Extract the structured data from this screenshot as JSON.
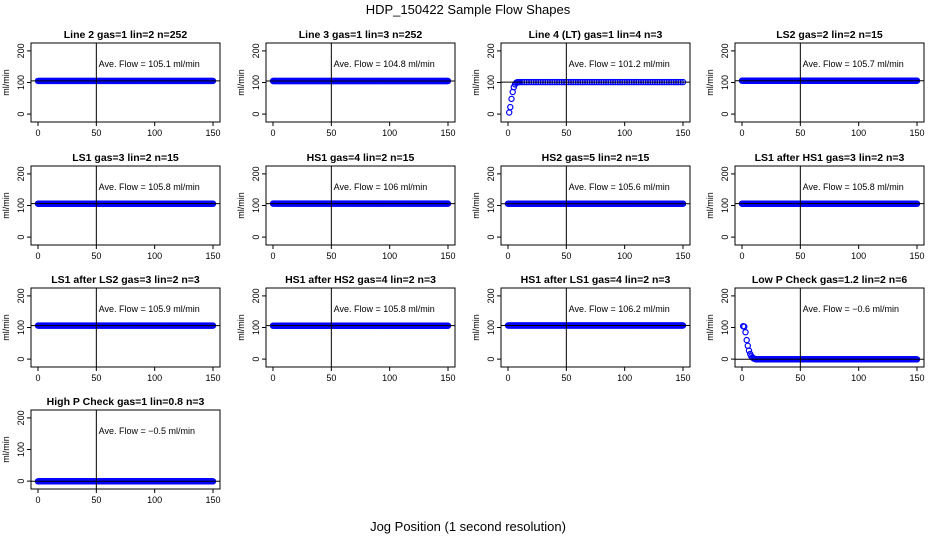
{
  "page": {
    "title": "HDP_150422  Sample Flow Shapes",
    "xlabel": "Jog Position (1 second resolution)"
  },
  "style": {
    "point_color": "#0000ff",
    "line_color": "#000000"
  },
  "chart_data": [
    {
      "type": "scatter",
      "title": "Line 2 gas=1 lin=2 n=252",
      "ylabel": "ml/min",
      "annotation": "Ave. Flow = 105.1  ml/min",
      "xlim": [
        0,
        150
      ],
      "ylim": [
        -25,
        225
      ],
      "xticks": [
        0,
        50,
        100,
        150
      ],
      "yticks": [
        0,
        100,
        200
      ],
      "vline": 50,
      "hline": 105.1,
      "series": {
        "shape": "flat",
        "level": 105.1
      }
    },
    {
      "type": "scatter",
      "title": "Line 3 gas=1 lin=3 n=252",
      "ylabel": "ml/min",
      "annotation": "Ave. Flow = 104.8  ml/min",
      "xlim": [
        0,
        150
      ],
      "ylim": [
        -25,
        225
      ],
      "xticks": [
        0,
        50,
        100,
        150
      ],
      "yticks": [
        0,
        100,
        200
      ],
      "vline": 50,
      "hline": 104.8,
      "series": {
        "shape": "flat",
        "level": 104.8
      }
    },
    {
      "type": "scatter",
      "title": "Line 4 (LT) gas=1 lin=4 n=3",
      "ylabel": "ml/min",
      "annotation": "Ave. Flow = 101.2  ml/min",
      "xlim": [
        0,
        150
      ],
      "ylim": [
        -25,
        225
      ],
      "xticks": [
        0,
        50,
        100,
        150
      ],
      "yticks": [
        0,
        100,
        200
      ],
      "vline": 50,
      "hline": 101.2,
      "series": {
        "shape": "rise",
        "level": 101.2,
        "points": [
          [
            1,
            5
          ],
          [
            2,
            22
          ],
          [
            3,
            48
          ],
          [
            4,
            70
          ],
          [
            5,
            85
          ],
          [
            6,
            94
          ],
          [
            7,
            99
          ],
          [
            8,
            101
          ],
          [
            9,
            101
          ]
        ]
      }
    },
    {
      "type": "scatter",
      "title": "LS2 gas=2 lin=2 n=15",
      "ylabel": "ml/min",
      "annotation": "Ave. Flow = 105.7  ml/min",
      "xlim": [
        0,
        150
      ],
      "ylim": [
        -25,
        225
      ],
      "xticks": [
        0,
        50,
        100,
        150
      ],
      "yticks": [
        0,
        100,
        200
      ],
      "vline": 50,
      "hline": 105.7,
      "series": {
        "shape": "flat",
        "level": 105.7
      }
    },
    {
      "type": "scatter",
      "title": "LS1 gas=3 lin=2 n=15",
      "ylabel": "ml/min",
      "annotation": "Ave. Flow = 105.8  ml/min",
      "xlim": [
        0,
        150
      ],
      "ylim": [
        -25,
        225
      ],
      "xticks": [
        0,
        50,
        100,
        150
      ],
      "yticks": [
        0,
        100,
        200
      ],
      "vline": 50,
      "hline": 105.8,
      "series": {
        "shape": "flat",
        "level": 105.8
      }
    },
    {
      "type": "scatter",
      "title": "HS1 gas=4 lin=2 n=15",
      "ylabel": "ml/min",
      "annotation": "Ave. Flow = 106  ml/min",
      "xlim": [
        0,
        150
      ],
      "ylim": [
        -25,
        225
      ],
      "xticks": [
        0,
        50,
        100,
        150
      ],
      "yticks": [
        0,
        100,
        200
      ],
      "vline": 50,
      "hline": 106,
      "series": {
        "shape": "flat",
        "level": 106
      }
    },
    {
      "type": "scatter",
      "title": "HS2 gas=5 lin=2 n=15",
      "ylabel": "ml/min",
      "annotation": "Ave. Flow = 105.6  ml/min",
      "xlim": [
        0,
        150
      ],
      "ylim": [
        -25,
        225
      ],
      "xticks": [
        0,
        50,
        100,
        150
      ],
      "yticks": [
        0,
        100,
        200
      ],
      "vline": 50,
      "hline": 105.6,
      "series": {
        "shape": "flat",
        "level": 105.6
      }
    },
    {
      "type": "scatter",
      "title": "LS1 after HS1 gas=3 lin=2 n=3",
      "ylabel": "ml/min",
      "annotation": "Ave. Flow = 105.8  ml/min",
      "xlim": [
        0,
        150
      ],
      "ylim": [
        -25,
        225
      ],
      "xticks": [
        0,
        50,
        100,
        150
      ],
      "yticks": [
        0,
        100,
        200
      ],
      "vline": 50,
      "hline": 105.8,
      "series": {
        "shape": "flat",
        "level": 105.8
      }
    },
    {
      "type": "scatter",
      "title": "LS1 after LS2 gas=3 lin=2 n=3",
      "ylabel": "ml/min",
      "annotation": "Ave. Flow = 105.9  ml/min",
      "xlim": [
        0,
        150
      ],
      "ylim": [
        -25,
        225
      ],
      "xticks": [
        0,
        50,
        100,
        150
      ],
      "yticks": [
        0,
        100,
        200
      ],
      "vline": 50,
      "hline": 105.9,
      "series": {
        "shape": "flat",
        "level": 105.9
      }
    },
    {
      "type": "scatter",
      "title": "HS1 after HS2 gas=4 lin=2 n=3",
      "ylabel": "ml/min",
      "annotation": "Ave. Flow = 105.8  ml/min",
      "xlim": [
        0,
        150
      ],
      "ylim": [
        -25,
        225
      ],
      "xticks": [
        0,
        50,
        100,
        150
      ],
      "yticks": [
        0,
        100,
        200
      ],
      "vline": 50,
      "hline": 105.8,
      "series": {
        "shape": "flat",
        "level": 105.8
      }
    },
    {
      "type": "scatter",
      "title": "HS1 after LS1 gas=4 lin=2 n=3",
      "ylabel": "ml/min",
      "annotation": "Ave. Flow = 106.2  ml/min",
      "xlim": [
        0,
        150
      ],
      "ylim": [
        -25,
        225
      ],
      "xticks": [
        0,
        50,
        100,
        150
      ],
      "yticks": [
        0,
        100,
        200
      ],
      "vline": 50,
      "hline": 106.2,
      "series": {
        "shape": "flat",
        "level": 106.2
      }
    },
    {
      "type": "scatter",
      "title": "Low P Check gas=1.2 lin=2 n=6",
      "ylabel": "ml/min",
      "annotation": "Ave. Flow = −0.6  ml/min",
      "xlim": [
        0,
        150
      ],
      "ylim": [
        -25,
        225
      ],
      "xticks": [
        0,
        50,
        100,
        150
      ],
      "yticks": [
        0,
        100,
        200
      ],
      "vline": 50,
      "hline": -0.6,
      "series": {
        "shape": "decay",
        "level": -0.6,
        "points": [
          [
            1,
            104
          ],
          [
            2,
            103
          ],
          [
            3,
            85
          ],
          [
            4,
            60
          ],
          [
            5,
            42
          ],
          [
            6,
            27
          ],
          [
            7,
            16
          ],
          [
            8,
            9
          ],
          [
            9,
            5
          ],
          [
            10,
            2
          ],
          [
            11,
            1
          ]
        ]
      }
    },
    {
      "type": "scatter",
      "title": "High P Check gas=1 lin=0.8 n=3",
      "ylabel": "ml/min",
      "annotation": "Ave. Flow = −0.5  ml/min",
      "xlim": [
        0,
        150
      ],
      "ylim": [
        -25,
        225
      ],
      "xticks": [
        0,
        50,
        100,
        150
      ],
      "yticks": [
        0,
        100,
        200
      ],
      "vline": 50,
      "hline": -0.5,
      "series": {
        "shape": "flat",
        "level": -0.5
      }
    }
  ]
}
